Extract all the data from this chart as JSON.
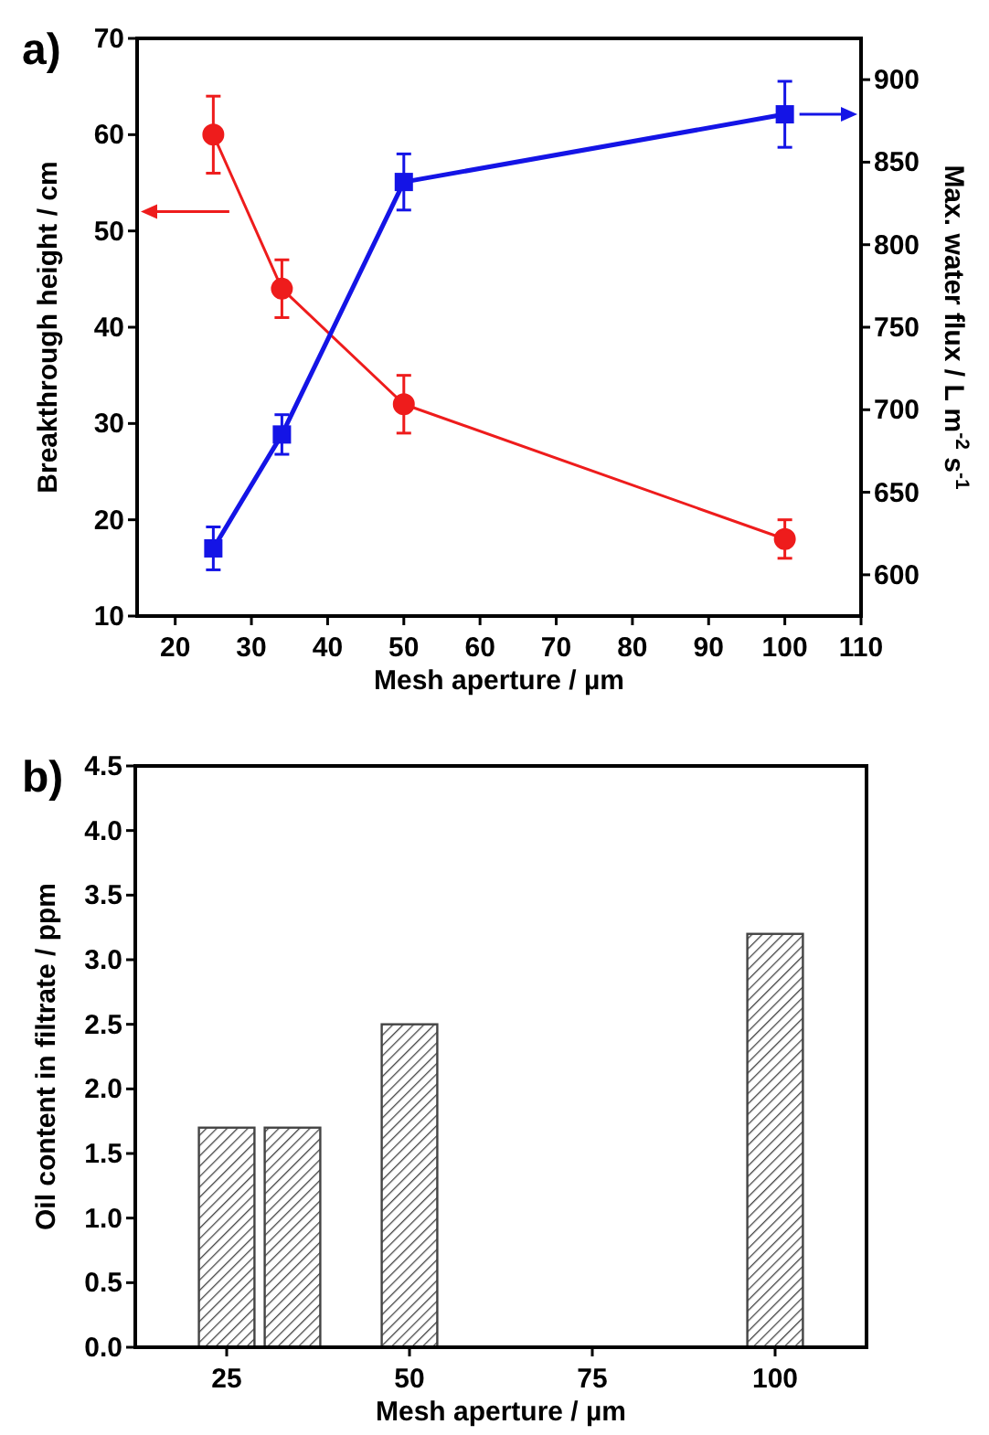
{
  "chart_data": [
    {
      "type": "line",
      "title": "a)",
      "xlabel": "Mesh aperture / µm",
      "ylabel": "Breakthrough height / cm",
      "y2label": "Max. water flux / L m$^{-2}$ s$^{-1}$",
      "x": [
        25,
        34,
        50,
        100
      ],
      "xlim": [
        15,
        110
      ],
      "xticks": [
        20,
        30,
        40,
        50,
        60,
        70,
        80,
        90,
        100,
        110
      ],
      "ylim": [
        10,
        70
      ],
      "yticks": [
        10,
        20,
        30,
        40,
        50,
        60,
        70
      ],
      "y2lim": [
        575,
        925
      ],
      "y2ticks": [
        600,
        650,
        700,
        750,
        800,
        850,
        900
      ],
      "grid": false,
      "series": [
        {
          "color": "#ee1c1c",
          "values": [
            60,
            44,
            32,
            18
          ],
          "errors": [
            4,
            3,
            3,
            2
          ],
          "marker": "circle"
        },
        {
          "color": "#1414e6",
          "values": [
            616,
            685,
            838,
            879
          ],
          "errors": [
            13,
            12,
            17,
            20
          ],
          "marker": "square",
          "axis": "y2"
        }
      ]
    },
    {
      "type": "bar",
      "title": "b)",
      "xlabel": "Mesh aperture / µm",
      "ylabel": "Oil content in filtrate / ppm",
      "x": [
        25,
        34,
        50,
        100
      ],
      "values": [
        1.7,
        1.7,
        2.5,
        3.2
      ],
      "color": "#444444",
      "xlim": [
        12.5,
        112.5
      ],
      "xticks": [
        25,
        50,
        75,
        100
      ],
      "ylim": [
        0,
        4.5
      ],
      "yticks": [
        {
          "value": 0,
          "label": "0.0"
        },
        0.5,
        {
          "value": 1,
          "label": "1.0"
        },
        1.5,
        {
          "value": 2,
          "label": "2.0"
        },
        2.5,
        {
          "value": 3,
          "label": "3.0"
        },
        3.5,
        {
          "value": 4,
          "label": "4.0"
        },
        4.5
      ],
      "grid": false
    }
  ]
}
